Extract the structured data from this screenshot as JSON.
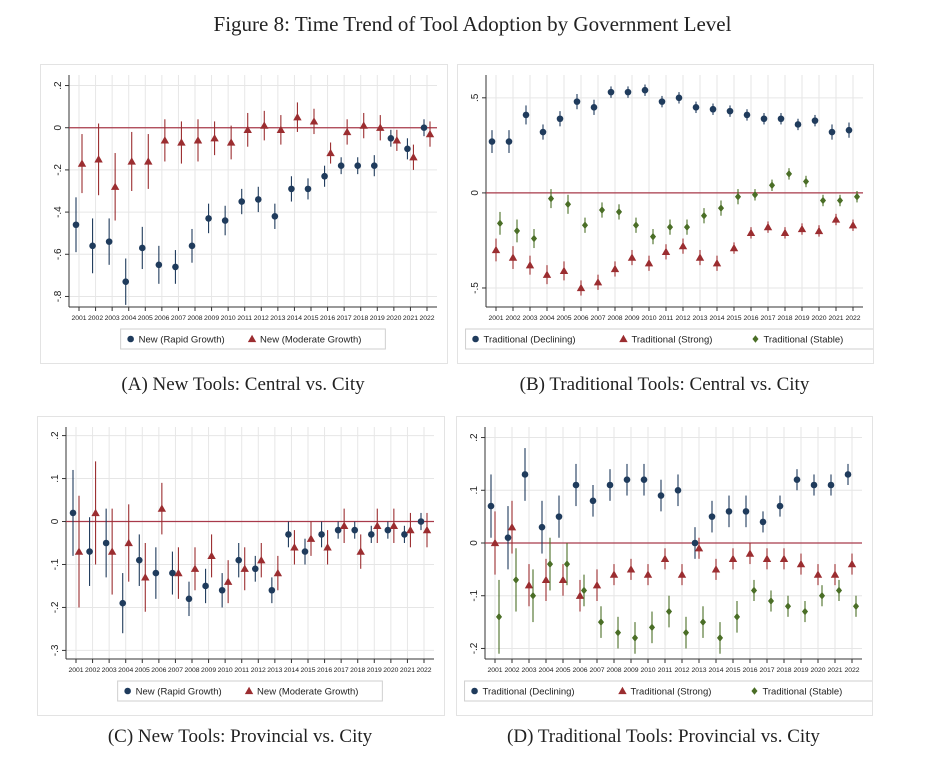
{
  "figure_title": "Figure 8: Time Trend of Tool Adoption by Government Level",
  "captions": {
    "A": "(A) New Tools: Central vs. City",
    "B": "(B) Traditional Tools: Central vs. City",
    "C": "(C) New Tools: Provincial vs. City",
    "D": "(D) Traditional Tools: Provincial vs. City"
  },
  "colors": {
    "navy": "#1f3b5c",
    "maroon": "#9b2d30",
    "green": "#4a6e26",
    "refline": "#a83a4a",
    "grid": "#e6e6e6"
  },
  "chart_data": [
    {
      "id": "A",
      "type": "scatter",
      "x": [
        2001,
        2002,
        2003,
        2004,
        2005,
        2006,
        2007,
        2008,
        2009,
        2010,
        2011,
        2012,
        2013,
        2014,
        2015,
        2016,
        2017,
        2018,
        2019,
        2020,
        2021,
        2022
      ],
      "yticks": [
        0.2,
        0,
        -0.2,
        -0.4,
        -0.6,
        -0.8
      ],
      "ytick_labels": [
        ".2",
        "0",
        "-.2",
        "-.4",
        "-.6",
        "-.8"
      ],
      "ylim": [
        -0.85,
        0.25
      ],
      "grid": true,
      "refline": 0,
      "series": [
        {
          "name": "New (Rapid Growth)",
          "marker": "circle",
          "color": "#1f3b5c",
          "values": [
            -0.46,
            -0.56,
            -0.54,
            -0.73,
            -0.57,
            -0.65,
            -0.66,
            -0.56,
            -0.43,
            -0.44,
            -0.35,
            -0.34,
            -0.42,
            -0.29,
            -0.29,
            -0.23,
            -0.18,
            -0.18,
            -0.18,
            -0.05,
            -0.1,
            0.0
          ],
          "ci": [
            0.13,
            0.13,
            0.11,
            0.11,
            0.1,
            0.09,
            0.08,
            0.08,
            0.07,
            0.07,
            0.06,
            0.06,
            0.06,
            0.06,
            0.05,
            0.05,
            0.04,
            0.04,
            0.05,
            0.04,
            0.05,
            0.04
          ]
        },
        {
          "name": "New (Moderate Growth)",
          "marker": "triangle",
          "color": "#9b2d30",
          "values": [
            -0.17,
            -0.15,
            -0.28,
            -0.16,
            -0.16,
            -0.06,
            -0.07,
            -0.06,
            -0.05,
            -0.07,
            -0.01,
            0.01,
            -0.01,
            0.05,
            0.03,
            -0.12,
            -0.02,
            0.01,
            0.0,
            -0.06,
            -0.14,
            -0.03
          ],
          "ci": [
            0.14,
            0.17,
            0.16,
            0.14,
            0.13,
            0.1,
            0.1,
            0.1,
            0.08,
            0.08,
            0.08,
            0.07,
            0.07,
            0.07,
            0.06,
            0.05,
            0.06,
            0.06,
            0.06,
            0.05,
            0.06,
            0.06
          ]
        }
      ]
    },
    {
      "id": "B",
      "type": "scatter",
      "x": [
        2001,
        2002,
        2003,
        2004,
        2005,
        2006,
        2007,
        2008,
        2009,
        2010,
        2011,
        2012,
        2013,
        2014,
        2015,
        2016,
        2017,
        2018,
        2019,
        2020,
        2021,
        2022
      ],
      "yticks": [
        0.5,
        0,
        -0.5
      ],
      "ytick_labels": [
        ".5",
        "0",
        "-.5"
      ],
      "ylim": [
        -0.6,
        0.62
      ],
      "grid": true,
      "refline": 0,
      "series": [
        {
          "name": "Traditional (Declining)",
          "marker": "circle",
          "color": "#1f3b5c",
          "values": [
            0.27,
            0.27,
            0.41,
            0.32,
            0.39,
            0.48,
            0.45,
            0.53,
            0.53,
            0.54,
            0.48,
            0.5,
            0.45,
            0.44,
            0.43,
            0.41,
            0.39,
            0.39,
            0.36,
            0.38,
            0.32,
            0.33
          ],
          "ci": [
            0.06,
            0.06,
            0.05,
            0.04,
            0.04,
            0.04,
            0.04,
            0.03,
            0.03,
            0.03,
            0.03,
            0.03,
            0.03,
            0.03,
            0.03,
            0.03,
            0.03,
            0.03,
            0.03,
            0.03,
            0.04,
            0.04
          ]
        },
        {
          "name": "Traditional (Strong)",
          "marker": "triangle",
          "color": "#9b2d30",
          "values": [
            -0.3,
            -0.34,
            -0.38,
            -0.43,
            -0.41,
            -0.5,
            -0.47,
            -0.4,
            -0.34,
            -0.37,
            -0.31,
            -0.28,
            -0.34,
            -0.37,
            -0.29,
            -0.21,
            -0.18,
            -0.21,
            -0.19,
            -0.2,
            -0.14,
            -0.17
          ],
          "ci": [
            0.06,
            0.06,
            0.05,
            0.05,
            0.05,
            0.04,
            0.04,
            0.04,
            0.04,
            0.04,
            0.04,
            0.04,
            0.04,
            0.04,
            0.03,
            0.03,
            0.03,
            0.03,
            0.03,
            0.03,
            0.03,
            0.03
          ]
        },
        {
          "name": "Traditional (Stable)",
          "marker": "diamond",
          "color": "#4a6e26",
          "values": [
            -0.16,
            -0.2,
            -0.24,
            -0.03,
            -0.06,
            -0.17,
            -0.09,
            -0.1,
            -0.17,
            -0.23,
            -0.18,
            -0.18,
            -0.12,
            -0.08,
            -0.02,
            -0.01,
            0.04,
            0.1,
            0.06,
            -0.04,
            -0.04,
            -0.02
          ],
          "ci": [
            0.06,
            0.06,
            0.05,
            0.05,
            0.05,
            0.04,
            0.04,
            0.04,
            0.04,
            0.04,
            0.04,
            0.04,
            0.04,
            0.04,
            0.04,
            0.03,
            0.03,
            0.03,
            0.03,
            0.03,
            0.03,
            0.03
          ]
        }
      ]
    },
    {
      "id": "C",
      "type": "scatter",
      "x": [
        2001,
        2002,
        2003,
        2004,
        2005,
        2006,
        2007,
        2008,
        2009,
        2010,
        2011,
        2012,
        2013,
        2014,
        2015,
        2016,
        2017,
        2018,
        2019,
        2020,
        2021,
        2022
      ],
      "yticks": [
        0.2,
        0.1,
        0,
        -0.1,
        -0.2,
        -0.3
      ],
      "ytick_labels": [
        ".2",
        ".1",
        "0",
        "-.1",
        "-.2",
        "-.3"
      ],
      "ylim": [
        -0.32,
        0.22
      ],
      "grid": true,
      "refline": 0,
      "series": [
        {
          "name": "New (Rapid Growth)",
          "marker": "circle",
          "color": "#1f3b5c",
          "values": [
            0.02,
            -0.07,
            -0.05,
            -0.19,
            -0.09,
            -0.12,
            -0.12,
            -0.18,
            -0.15,
            -0.16,
            -0.09,
            -0.11,
            -0.16,
            -0.03,
            -0.07,
            -0.03,
            -0.02,
            -0.02,
            -0.03,
            -0.02,
            -0.03,
            0.0
          ],
          "ci": [
            0.1,
            0.08,
            0.08,
            0.07,
            0.06,
            0.06,
            0.05,
            0.04,
            0.04,
            0.04,
            0.04,
            0.03,
            0.03,
            0.03,
            0.03,
            0.03,
            0.02,
            0.02,
            0.02,
            0.02,
            0.02,
            0.02
          ]
        },
        {
          "name": "New (Moderate Growth)",
          "marker": "triangle",
          "color": "#9b2d30",
          "values": [
            -0.07,
            0.02,
            -0.07,
            -0.05,
            -0.13,
            0.03,
            -0.12,
            -0.11,
            -0.08,
            -0.14,
            -0.11,
            -0.09,
            -0.12,
            -0.06,
            -0.04,
            -0.06,
            -0.01,
            -0.07,
            -0.01,
            -0.01,
            -0.02,
            -0.02
          ],
          "ci": [
            0.13,
            0.12,
            0.1,
            0.09,
            0.08,
            0.06,
            0.06,
            0.05,
            0.05,
            0.05,
            0.05,
            0.04,
            0.04,
            0.04,
            0.04,
            0.04,
            0.04,
            0.04,
            0.04,
            0.04,
            0.04,
            0.04
          ]
        }
      ]
    },
    {
      "id": "D",
      "type": "scatter",
      "x": [
        2001,
        2002,
        2003,
        2004,
        2005,
        2006,
        2007,
        2008,
        2009,
        2010,
        2011,
        2012,
        2013,
        2014,
        2015,
        2016,
        2017,
        2018,
        2019,
        2020,
        2021,
        2022
      ],
      "yticks": [
        0.2,
        0.1,
        0,
        -0.1,
        -0.2
      ],
      "ytick_labels": [
        ".2",
        ".1",
        "0",
        "-.1",
        "-.2"
      ],
      "ylim": [
        -0.22,
        0.22
      ],
      "grid": true,
      "refline": 0,
      "series": [
        {
          "name": "Traditional (Declining)",
          "marker": "circle",
          "color": "#1f3b5c",
          "values": [
            0.07,
            0.01,
            0.13,
            0.03,
            0.05,
            0.11,
            0.08,
            0.11,
            0.12,
            0.12,
            0.09,
            0.1,
            0.0,
            0.05,
            0.06,
            0.06,
            0.04,
            0.07,
            0.12,
            0.11,
            0.11,
            0.13
          ],
          "ci": [
            0.06,
            0.06,
            0.05,
            0.05,
            0.04,
            0.04,
            0.03,
            0.03,
            0.03,
            0.03,
            0.03,
            0.03,
            0.03,
            0.03,
            0.03,
            0.03,
            0.02,
            0.02,
            0.02,
            0.02,
            0.02,
            0.02
          ]
        },
        {
          "name": "Traditional (Strong)",
          "marker": "triangle",
          "color": "#9b2d30",
          "values": [
            0.0,
            0.03,
            -0.08,
            -0.07,
            -0.07,
            -0.1,
            -0.08,
            -0.06,
            -0.05,
            -0.06,
            -0.03,
            -0.06,
            -0.01,
            -0.05,
            -0.03,
            -0.02,
            -0.03,
            -0.03,
            -0.04,
            -0.06,
            -0.06,
            -0.04
          ],
          "ci": [
            0.06,
            0.05,
            0.04,
            0.04,
            0.03,
            0.03,
            0.03,
            0.02,
            0.02,
            0.02,
            0.02,
            0.02,
            0.02,
            0.02,
            0.02,
            0.02,
            0.02,
            0.02,
            0.02,
            0.02,
            0.02,
            0.02
          ]
        },
        {
          "name": "Traditional (Stable)",
          "marker": "diamond",
          "color": "#4a6e26",
          "values": [
            -0.14,
            -0.07,
            -0.1,
            -0.04,
            -0.04,
            -0.09,
            -0.15,
            -0.17,
            -0.18,
            -0.16,
            -0.13,
            -0.17,
            -0.15,
            -0.18,
            -0.14,
            -0.09,
            -0.11,
            -0.12,
            -0.13,
            -0.1,
            -0.09,
            -0.12
          ],
          "ci": [
            0.07,
            0.06,
            0.05,
            0.05,
            0.04,
            0.03,
            0.03,
            0.03,
            0.03,
            0.03,
            0.03,
            0.03,
            0.03,
            0.03,
            0.03,
            0.02,
            0.02,
            0.02,
            0.02,
            0.02,
            0.02,
            0.02
          ]
        }
      ]
    }
  ]
}
